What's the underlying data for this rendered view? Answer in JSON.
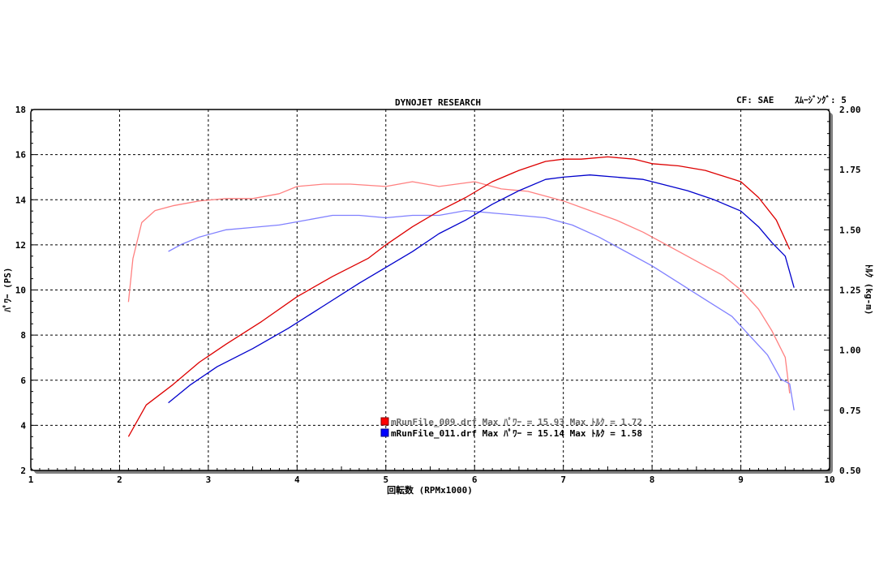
{
  "header": {
    "title": "DYNOJET  RESEARCH",
    "cf": "CF: SAE",
    "smoothing": "ｽﾑｰｼﾞﾝｸﾞ: 5"
  },
  "chart_data": {
    "type": "line",
    "xlabel": "回転数 (RPMx1000)",
    "ylabel": "ﾊﾟﾜｰ (PS)",
    "y2label": "ﾄﾙｸ (kg-m)",
    "xlim": [
      1,
      10
    ],
    "ylim": [
      2,
      18
    ],
    "y2lim": [
      0.5,
      2.0
    ],
    "xticks": [
      "1",
      "2",
      "3",
      "4",
      "5",
      "6",
      "7",
      "8",
      "9",
      "10"
    ],
    "yticks": [
      "2",
      "4",
      "6",
      "8",
      "10",
      "12",
      "14",
      "16",
      "18"
    ],
    "y2ticks": [
      "0.50",
      "0.75",
      "1.00",
      "1.25",
      "1.50",
      "1.75",
      "2.00"
    ],
    "grid": true,
    "legend_position": "bottom-center",
    "legend": [
      {
        "label": "mRunFile_009.drf Max ﾊﾟﾜｰ = 15.93      Max ﾄﾙｸ = 1.72",
        "color": "#ff0000"
      },
      {
        "label": "mRunFile_011.drf Max ﾊﾟﾜｰ = 15.14      Max ﾄﾙｸ = 1.58",
        "color": "#0000ff"
      }
    ],
    "series": [
      {
        "name": "mRunFile_009.drf",
        "quantity": "power",
        "axis": "left",
        "color": "#dd0000",
        "x": [
          2.1,
          2.3,
          2.6,
          2.9,
          3.2,
          3.6,
          4.0,
          4.4,
          4.8,
          5.0,
          5.3,
          5.6,
          5.9,
          6.2,
          6.5,
          6.8,
          7.0,
          7.2,
          7.5,
          7.8,
          8.0,
          8.3,
          8.6,
          9.0,
          9.2,
          9.4,
          9.55
        ],
        "y": [
          3.5,
          4.9,
          5.8,
          6.8,
          7.6,
          8.6,
          9.7,
          10.6,
          11.4,
          12.0,
          12.8,
          13.5,
          14.1,
          14.8,
          15.3,
          15.7,
          15.8,
          15.8,
          15.9,
          15.8,
          15.6,
          15.5,
          15.3,
          14.8,
          14.1,
          13.1,
          11.8
        ]
      },
      {
        "name": "mRunFile_011.drf",
        "quantity": "power",
        "axis": "left",
        "color": "#0000cc",
        "x": [
          2.55,
          2.8,
          3.1,
          3.5,
          3.9,
          4.3,
          4.7,
          5.0,
          5.3,
          5.6,
          5.9,
          6.2,
          6.5,
          6.8,
          7.0,
          7.3,
          7.6,
          7.9,
          8.1,
          8.4,
          8.7,
          9.0,
          9.2,
          9.35,
          9.5,
          9.6
        ],
        "y": [
          5.0,
          5.8,
          6.6,
          7.4,
          8.3,
          9.3,
          10.3,
          11.0,
          11.7,
          12.5,
          13.1,
          13.8,
          14.4,
          14.9,
          15.0,
          15.1,
          15.0,
          14.9,
          14.7,
          14.4,
          14.0,
          13.5,
          12.8,
          12.1,
          11.5,
          10.1
        ]
      },
      {
        "name": "mRunFile_009.drf",
        "quantity": "torque",
        "axis": "right",
        "color": "#ff8080",
        "x": [
          2.1,
          2.15,
          2.25,
          2.4,
          2.6,
          2.9,
          3.2,
          3.5,
          3.8,
          4.0,
          4.3,
          4.6,
          5.0,
          5.3,
          5.6,
          6.0,
          6.3,
          6.6,
          7.0,
          7.3,
          7.6,
          7.9,
          8.2,
          8.5,
          8.8,
          9.0,
          9.2,
          9.35,
          9.5,
          9.55
        ],
        "y": [
          1.2,
          1.38,
          1.53,
          1.58,
          1.6,
          1.62,
          1.63,
          1.63,
          1.65,
          1.68,
          1.69,
          1.69,
          1.68,
          1.7,
          1.68,
          1.7,
          1.67,
          1.66,
          1.62,
          1.58,
          1.54,
          1.49,
          1.43,
          1.37,
          1.31,
          1.25,
          1.17,
          1.08,
          0.97,
          0.82
        ]
      },
      {
        "name": "mRunFile_011.drf",
        "quantity": "torque",
        "axis": "right",
        "color": "#8080ff",
        "x": [
          2.55,
          2.7,
          2.9,
          3.2,
          3.5,
          3.8,
          4.1,
          4.4,
          4.7,
          5.0,
          5.3,
          5.6,
          5.9,
          6.2,
          6.5,
          6.8,
          7.1,
          7.4,
          7.7,
          8.0,
          8.3,
          8.6,
          8.9,
          9.1,
          9.3,
          9.45,
          9.55,
          9.6
        ],
        "y": [
          1.41,
          1.44,
          1.47,
          1.5,
          1.51,
          1.52,
          1.54,
          1.56,
          1.56,
          1.55,
          1.56,
          1.56,
          1.58,
          1.57,
          1.56,
          1.55,
          1.52,
          1.47,
          1.41,
          1.35,
          1.28,
          1.21,
          1.14,
          1.06,
          0.98,
          0.88,
          0.86,
          0.75
        ]
      }
    ]
  }
}
